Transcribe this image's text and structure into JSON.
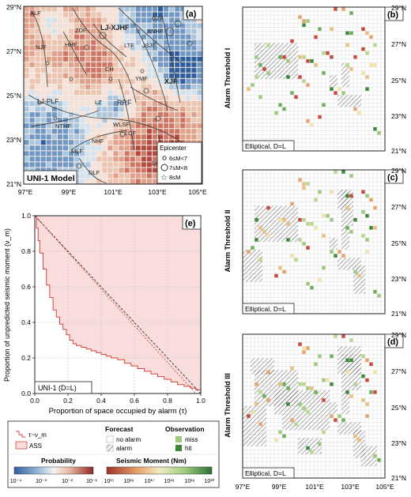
{
  "panel_a": {
    "tag": "(a)",
    "model_label": "UNI-1 Model",
    "lat_labels": [
      "29°N",
      "27°N",
      "25°N",
      "23°N",
      "21°N"
    ],
    "lon_labels": [
      "97°E",
      "99°E",
      "101°E",
      "103°E",
      "105°E"
    ],
    "faults": [
      "XLF",
      "ZDF",
      "LJ-XJHF",
      "GZF",
      "NJF",
      "HHF",
      "YMF",
      "LTF",
      "JSJF",
      "ANHF",
      "XJF",
      "CH",
      "RRF",
      "LJ-PLF",
      "NTHF",
      "WLSF",
      "MLF",
      "LCF",
      "DLF",
      "DBPF",
      "NHF",
      "LZ"
    ],
    "legend": {
      "title": "Epicenter",
      "items": [
        "6≤M<7",
        "7≤M<8",
        "8≤M"
      ]
    }
  },
  "panel_b": {
    "tag": "(b)",
    "side_label": "Alarm Threshold I",
    "corner_label": "Elliptical, D=L"
  },
  "panel_c": {
    "tag": "(c)",
    "side_label": "Alarm Threshold II",
    "corner_label": "Elliptical, D=L"
  },
  "panel_d": {
    "tag": "(d)",
    "side_label": "Alarm Threshold III",
    "corner_label": "Elliptical, D=L"
  },
  "map_right": {
    "lat_labels": [
      "29°N",
      "27°N",
      "25°N",
      "23°N",
      "21°N"
    ],
    "lon_labels": [
      "97°E",
      "99°E",
      "101°E",
      "103°E",
      "105°E"
    ]
  },
  "panel_e": {
    "tag": "(e)",
    "ylabel": "Proportion of unpredicted seismic moment (ν_m)",
    "xlabel": "Proportion of space occupied by alarm (τ)",
    "model_label": "UNI-1 (D=L)",
    "x_ticks": [
      "0.0",
      "0.2",
      "0.4",
      "0.6",
      "0.8",
      "1.0"
    ],
    "y_ticks": [
      "0.0",
      "0.2",
      "0.4",
      "0.6",
      "0.8",
      "1.0"
    ]
  },
  "chart_data": {
    "type": "line",
    "x": [
      0.0,
      0.01,
      0.02,
      0.03,
      0.05,
      0.07,
      0.09,
      0.11,
      0.13,
      0.15,
      0.17,
      0.19,
      0.21,
      0.23,
      0.25,
      0.28,
      0.31,
      0.34,
      0.37,
      0.4,
      0.43,
      0.46,
      0.5,
      0.54,
      0.58,
      0.62,
      0.66,
      0.7,
      0.74,
      0.78,
      0.82,
      0.86,
      0.9,
      0.94,
      0.97,
      1.0
    ],
    "series": [
      {
        "values": [
          1.0,
          0.93,
          0.86,
          0.79,
          0.7,
          0.61,
          0.54,
          0.47,
          0.43,
          0.39,
          0.36,
          0.33,
          0.3,
          0.28,
          0.27,
          0.26,
          0.25,
          0.24,
          0.23,
          0.22,
          0.21,
          0.2,
          0.19,
          0.17,
          0.155,
          0.14,
          0.125,
          0.11,
          0.095,
          0.08,
          0.065,
          0.05,
          0.04,
          0.03,
          0.02,
          0.0
        ]
      }
    ],
    "xlim": [
      0,
      1
    ],
    "ylim": [
      0,
      1
    ],
    "grid": true
  },
  "legend_bottom": {
    "curve_label": "τ~ν_m",
    "ass_label": "ASS",
    "forecast_title": "Forecast",
    "no_alarm": "no alarm",
    "alarm": "alarm",
    "observation_title": "Observation",
    "miss": "miss",
    "hit": "hit",
    "probability_title": "Probability",
    "probability_ticks": [
      "10⁻⁴",
      "10⁻³",
      "10⁻²",
      "10⁻¹"
    ],
    "moment_title": "Seismic Moment (Nm)",
    "moment_ticks": [
      "10¹⁵",
      "10¹⁶",
      "10¹⁷",
      "10¹⁸",
      "10¹⁹",
      "10²⁰"
    ]
  },
  "colors": {
    "prob_high": "#a23a2e",
    "prob_low": "#3f74b0",
    "miss": "#9ccb7d",
    "hit": "#3d8a3a",
    "ass": "#f9dcdc",
    "curve": "#d6453d"
  }
}
